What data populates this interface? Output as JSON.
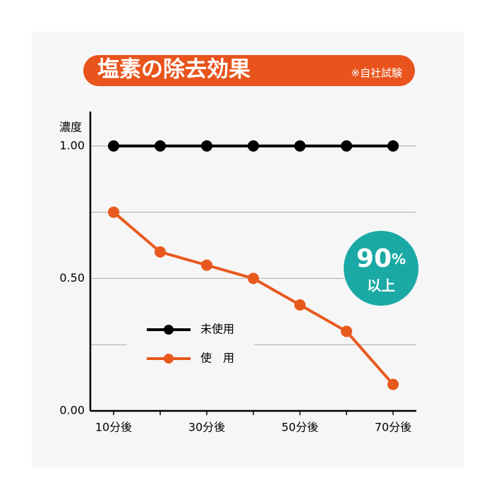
{
  "chart_data": {
    "type": "line",
    "title": "塩素の除去効果",
    "subtitle": "※自社試験",
    "y_label": "濃度",
    "categories": [
      "10分後",
      null,
      "30分後",
      null,
      "50分後",
      null,
      "70分後"
    ],
    "series": [
      {
        "name": "未使用",
        "color": "#000000",
        "values": [
          1.0,
          1.0,
          1.0,
          1.0,
          1.0,
          1.0,
          1.0
        ]
      },
      {
        "name": "使　用",
        "color": "#e8591e",
        "values": [
          0.75,
          0.6,
          0.55,
          0.5,
          0.4,
          0.3,
          0.1
        ]
      }
    ],
    "ylim": [
      0,
      1.13
    ],
    "yticks": [
      {
        "value": 0,
        "label": "0.00"
      },
      {
        "value": 0.25
      },
      {
        "value": 0.5,
        "label": "0.50"
      },
      {
        "value": 0.75
      },
      {
        "value": 1,
        "label": "1.00"
      }
    ],
    "grid": true,
    "annotations": [
      "90",
      "%",
      "以上"
    ],
    "annotation_color": "#1aa9a5",
    "title_color": "#e8541c"
  }
}
